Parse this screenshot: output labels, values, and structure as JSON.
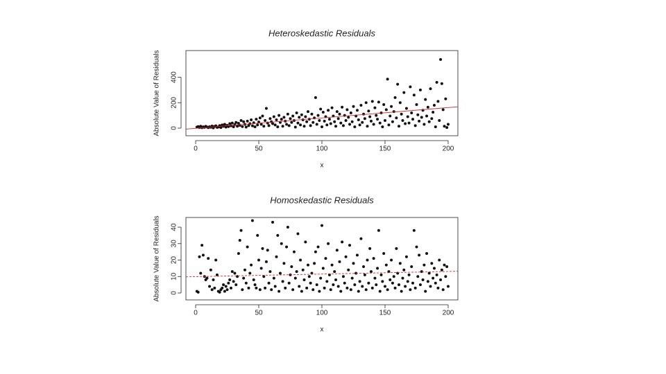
{
  "chart_data": [
    {
      "type": "scatter",
      "title": "Heteroskedastic Residuals",
      "x_label": "x",
      "y_label": "Absolute Value of Residuals",
      "color": "#111111",
      "xlim": [
        -7.7,
        207.7
      ],
      "xticks": [
        0,
        50,
        100,
        150,
        200
      ],
      "ylim": [
        -60,
        610
      ],
      "yticks": [
        0,
        200,
        400
      ],
      "x": [
        1,
        2,
        3,
        4,
        5,
        6,
        7,
        8,
        9,
        10,
        11,
        12,
        13,
        14,
        15,
        16,
        17,
        18,
        19,
        20,
        21,
        22,
        23,
        24,
        25,
        26,
        27,
        28,
        29,
        30,
        31,
        32,
        33,
        34,
        35,
        36,
        37,
        38,
        39,
        40,
        41,
        42,
        43,
        44,
        45,
        46,
        47,
        48,
        49,
        50,
        51,
        52,
        53,
        54,
        55,
        56,
        57,
        58,
        59,
        60,
        61,
        62,
        63,
        64,
        65,
        66,
        67,
        68,
        69,
        70,
        71,
        72,
        73,
        74,
        75,
        76,
        77,
        78,
        79,
        80,
        81,
        82,
        83,
        84,
        85,
        86,
        87,
        88,
        89,
        90,
        91,
        92,
        93,
        94,
        95,
        96,
        97,
        98,
        99,
        100,
        101,
        102,
        103,
        104,
        105,
        106,
        107,
        108,
        109,
        110,
        111,
        112,
        113,
        114,
        115,
        116,
        117,
        118,
        119,
        120,
        121,
        122,
        123,
        124,
        125,
        126,
        127,
        128,
        129,
        130,
        131,
        132,
        133,
        134,
        135,
        136,
        137,
        138,
        139,
        140,
        141,
        142,
        143,
        144,
        145,
        146,
        147,
        148,
        149,
        150,
        151,
        152,
        153,
        154,
        155,
        156,
        157,
        158,
        159,
        160,
        161,
        162,
        163,
        164,
        165,
        166,
        167,
        168,
        169,
        170,
        171,
        172,
        173,
        174,
        175,
        176,
        177,
        178,
        179,
        180,
        181,
        182,
        183,
        184,
        185,
        186,
        187,
        188,
        189,
        190,
        191,
        192,
        193,
        194,
        195,
        196,
        197,
        198,
        199,
        200
      ],
      "values": [
        8,
        12,
        5,
        15,
        3,
        10,
        6,
        14,
        9,
        4,
        11,
        7,
        16,
        2,
        13,
        18,
        6,
        9,
        20,
        5,
        25,
        14,
        30,
        8,
        22,
        12,
        35,
        18,
        40,
        10,
        28,
        45,
        15,
        38,
        22,
        60,
        12,
        50,
        30,
        8,
        55,
        20,
        35,
        65,
        18,
        42,
        10,
        70,
        25,
        48,
        80,
        30,
        95,
        15,
        60,
        155,
        40,
        20,
        75,
        50,
        35,
        90,
        25,
        65,
        10,
        100,
        45,
        70,
        15,
        85,
        55,
        30,
        110,
        20,
        75,
        45,
        95,
        60,
        8,
        120,
        40,
        85,
        25,
        105,
        65,
        15,
        90,
        50,
        130,
        70,
        20,
        110,
        45,
        80,
        240,
        30,
        100,
        60,
        150,
        10,
        125,
        55,
        90,
        25,
        140,
        70,
        35,
        160,
        95,
        50,
        15,
        130,
        75,
        110,
        40,
        165,
        20,
        100,
        60,
        145,
        85,
        30,
        120,
        50,
        170,
        10,
        95,
        140,
        65,
        25,
        180,
        45,
        110,
        75,
        200,
        15,
        135,
        90,
        55,
        210,
        30,
        160,
        100,
        70,
        205,
        40,
        120,
        10,
        185,
        60,
        145,
        385,
        25,
        95,
        170,
        50,
        130,
        240,
        80,
        345,
        15,
        200,
        110,
        60,
        280,
        35,
        155,
        90,
        40,
        325,
        120,
        70,
        260,
        20,
        185,
        105,
        55,
        300,
        85,
        140,
        30,
        225,
        95,
        165,
        50,
        310,
        75,
        125,
        180,
        10,
        360,
        210,
        60,
        540,
        350,
        145,
        15,
        230,
        5,
        30
      ],
      "fit": {
        "x": [
          -7.7,
          207.7
        ],
        "y": [
          -8,
          168
        ],
        "color": "#d62728",
        "dashed": false
      }
    },
    {
      "type": "scatter",
      "title": "Homoskedastic Residuals",
      "x_label": "x",
      "y_label": "Absolute Value of Residuals",
      "color": "#111111",
      "xlim": [
        -7.7,
        207.7
      ],
      "xticks": [
        0,
        50,
        100,
        150,
        200
      ],
      "ylim": [
        -4.2,
        45.9
      ],
      "yticks": [
        0,
        10,
        20,
        30,
        40
      ],
      "x": [
        1,
        2,
        3,
        4,
        5,
        6,
        7,
        8,
        9,
        10,
        11,
        12,
        13,
        14,
        15,
        16,
        17,
        18,
        19,
        20,
        21,
        22,
        23,
        24,
        25,
        26,
        27,
        28,
        29,
        30,
        31,
        32,
        33,
        34,
        35,
        36,
        37,
        38,
        39,
        40,
        41,
        42,
        43,
        44,
        45,
        46,
        47,
        48,
        49,
        50,
        51,
        52,
        53,
        54,
        55,
        56,
        57,
        58,
        59,
        60,
        61,
        62,
        63,
        64,
        65,
        66,
        67,
        68,
        69,
        70,
        71,
        72,
        73,
        74,
        75,
        76,
        77,
        78,
        79,
        80,
        81,
        82,
        83,
        84,
        85,
        86,
        87,
        88,
        89,
        90,
        91,
        92,
        93,
        94,
        95,
        96,
        97,
        98,
        99,
        100,
        101,
        102,
        103,
        104,
        105,
        106,
        107,
        108,
        109,
        110,
        111,
        112,
        113,
        114,
        115,
        116,
        117,
        118,
        119,
        120,
        121,
        122,
        123,
        124,
        125,
        126,
        127,
        128,
        129,
        130,
        131,
        132,
        133,
        134,
        135,
        136,
        137,
        138,
        139,
        140,
        141,
        142,
        143,
        144,
        145,
        146,
        147,
        148,
        149,
        150,
        151,
        152,
        153,
        154,
        155,
        156,
        157,
        158,
        159,
        160,
        161,
        162,
        163,
        164,
        165,
        166,
        167,
        168,
        169,
        170,
        171,
        172,
        173,
        174,
        175,
        176,
        177,
        178,
        179,
        180,
        181,
        182,
        183,
        184,
        185,
        186,
        187,
        188,
        189,
        190,
        191,
        192,
        193,
        194,
        195,
        196,
        197,
        198,
        199,
        200
      ],
      "values": [
        1,
        0.5,
        22,
        12,
        29,
        23,
        10,
        8,
        9,
        21,
        4,
        14,
        2,
        8,
        3,
        20,
        11,
        1,
        0.5,
        2,
        3,
        5,
        1,
        4,
        2,
        6,
        8,
        3,
        13,
        7,
        12,
        5,
        10,
        24,
        32,
        38,
        2,
        9,
        14,
        6,
        28,
        3,
        12,
        17,
        44,
        8,
        5,
        3,
        35,
        20,
        2,
        15,
        27,
        10,
        3,
        19,
        26,
        6,
        13,
        2,
        43,
        9,
        4,
        22,
        35,
        1,
        12,
        30,
        7,
        18,
        3,
        28,
        40,
        6,
        11,
        16,
        2,
        25,
        9,
        13,
        36,
        4,
        20,
        1,
        14,
        8,
        31,
        3,
        17,
        10,
        6,
        12,
        2,
        18,
        25,
        5,
        28,
        1,
        9,
        41,
        15,
        3,
        21,
        7,
        30,
        11,
        2,
        17,
        5,
        13,
        8,
        26,
        4,
        19,
        1,
        31,
        10,
        6,
        22,
        3,
        14,
        29,
        2,
        9,
        18,
        5,
        12,
        23,
        1,
        7,
        33,
        4,
        16,
        11,
        2,
        20,
        6,
        27,
        13,
        3,
        21,
        9,
        5,
        15,
        38,
        1,
        11,
        7,
        24,
        4,
        17,
        2,
        13,
        8,
        20,
        6,
        10,
        3,
        27,
        12,
        5,
        18,
        1,
        9,
        14,
        4,
        22,
        7,
        11,
        2,
        16,
        6,
        38,
        3,
        28,
        10,
        23,
        5,
        13,
        8,
        17,
        1,
        24,
        7,
        12,
        4,
        18,
        9,
        15,
        6,
        11,
        3,
        20,
        8,
        14,
        2,
        17,
        10,
        16,
        4
      ],
      "fit": {
        "x": [
          -7.7,
          207.7
        ],
        "y": [
          9.8,
          13.2
        ],
        "color": "#d62728",
        "dashed": true
      }
    }
  ]
}
